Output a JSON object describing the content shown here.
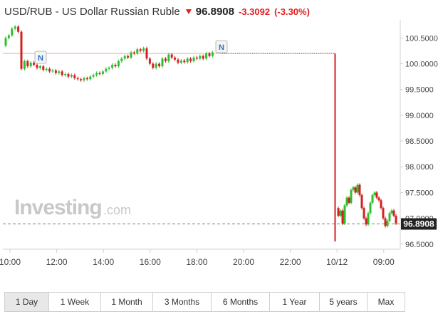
{
  "header": {
    "title": "USD/RUB - US Dollar Russian Ruble",
    "price": "96.8908",
    "change": "-3.3092",
    "change_pct": "(-3.30%)",
    "down_color": "#e02020"
  },
  "watermark": {
    "brand": "Investing",
    "suffix": ".com"
  },
  "news_markers": [
    "N",
    "N"
  ],
  "time_ranges": [
    "1 Day",
    "1 Week",
    "1 Month",
    "3 Months",
    "6 Months",
    "1 Year",
    "5 years",
    "Max"
  ],
  "active_range": "1 Day",
  "colors": {
    "up": "#2fbf2f",
    "down": "#d42020",
    "ref_line": "#f0a0a0",
    "axis": "#d0d0d0"
  },
  "chart_data": {
    "type": "candlestick",
    "y_ticks": [
      "100.5000",
      "100.0000",
      "99.5000",
      "99.0000",
      "98.5000",
      "98.0000",
      "97.5000",
      "97.0000",
      "96.5000"
    ],
    "ylim": [
      96.4,
      100.85
    ],
    "x_ticks": [
      "10:00",
      "12:00",
      "14:00",
      "16:00",
      "18:00",
      "20:00",
      "22:00",
      "10/12",
      "09:00"
    ],
    "current_price_label": "96.8908",
    "current_price": 96.89,
    "reference_level": 100.2,
    "gap_open_price": 100.2,
    "gap_close_price": 96.55,
    "session1": [
      100.35,
      100.5,
      100.55,
      100.68,
      100.72,
      100.62,
      99.9,
      100.05,
      99.95,
      100.02,
      99.98,
      99.92,
      99.95,
      99.88,
      99.9,
      99.85,
      99.87,
      99.82,
      99.85,
      99.78,
      99.8,
      99.75,
      99.78,
      99.72,
      99.7,
      99.68,
      99.72,
      99.7,
      99.75,
      99.78,
      99.82,
      99.8,
      99.85,
      99.9,
      99.92,
      99.98,
      99.95,
      100.05,
      100.1,
      100.15,
      100.12,
      100.22,
      100.2,
      100.28,
      100.25,
      100.3,
      100.1,
      100.0,
      99.92,
      100.0,
      99.95,
      100.1,
      100.05,
      100.18,
      100.12,
      100.08,
      100.02,
      100.06,
      100.03,
      100.1,
      100.05,
      100.12,
      100.1,
      100.15,
      100.1,
      100.2,
      100.15,
      100.22
    ],
    "session2": [
      97.2,
      97.05,
      97.15,
      96.9,
      97.25,
      97.4,
      97.3,
      97.55,
      97.6,
      97.5,
      97.65,
      97.45,
      97.2,
      97.0,
      96.88,
      97.1,
      97.3,
      97.45,
      97.5,
      97.4,
      97.35,
      97.2,
      97.0,
      96.85,
      96.95,
      97.1,
      97.15,
      97.05,
      96.9
    ]
  }
}
